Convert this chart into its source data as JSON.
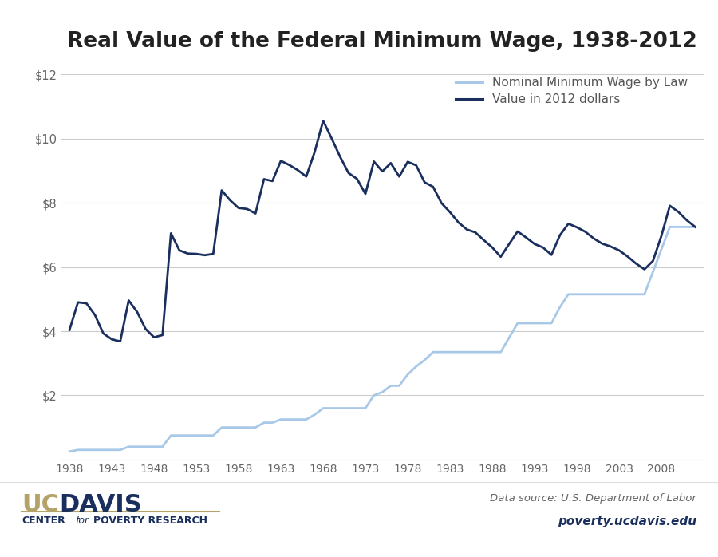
{
  "title": "Real Value of the Federal Minimum Wage, 1938-2012",
  "title_fontsize": 19,
  "background_color": "#ffffff",
  "nominal_color": "#a8c8e8",
  "real_color": "#1a2f5e",
  "nominal_label": "Nominal Minimum Wage by Law",
  "real_label": "Value in 2012 dollars",
  "source_text": "Data source: U.S. Department of Labor",
  "website_text": "poverty.ucdavis.edu",
  "ylabel_ticks": [
    "$2",
    "$4",
    "$6",
    "$8",
    "$10",
    "$12"
  ],
  "ytick_vals": [
    2,
    4,
    6,
    8,
    10,
    12
  ],
  "ylim": [
    0,
    12.5
  ],
  "xlim": [
    1937,
    2013
  ],
  "xticks": [
    1938,
    1943,
    1948,
    1953,
    1958,
    1963,
    1968,
    1973,
    1978,
    1983,
    1988,
    1993,
    1998,
    2003,
    2008
  ],
  "nominal_data": [
    [
      1938,
      0.25
    ],
    [
      1939,
      0.3
    ],
    [
      1940,
      0.3
    ],
    [
      1941,
      0.3
    ],
    [
      1942,
      0.3
    ],
    [
      1943,
      0.3
    ],
    [
      1944,
      0.3
    ],
    [
      1945,
      0.4
    ],
    [
      1946,
      0.4
    ],
    [
      1947,
      0.4
    ],
    [
      1948,
      0.4
    ],
    [
      1949,
      0.4
    ],
    [
      1950,
      0.75
    ],
    [
      1951,
      0.75
    ],
    [
      1952,
      0.75
    ],
    [
      1953,
      0.75
    ],
    [
      1954,
      0.75
    ],
    [
      1955,
      0.75
    ],
    [
      1956,
      1.0
    ],
    [
      1957,
      1.0
    ],
    [
      1958,
      1.0
    ],
    [
      1959,
      1.0
    ],
    [
      1960,
      1.0
    ],
    [
      1961,
      1.15
    ],
    [
      1962,
      1.15
    ],
    [
      1963,
      1.25
    ],
    [
      1964,
      1.25
    ],
    [
      1965,
      1.25
    ],
    [
      1966,
      1.25
    ],
    [
      1967,
      1.4
    ],
    [
      1968,
      1.6
    ],
    [
      1969,
      1.6
    ],
    [
      1970,
      1.6
    ],
    [
      1971,
      1.6
    ],
    [
      1972,
      1.6
    ],
    [
      1973,
      1.6
    ],
    [
      1974,
      2.0
    ],
    [
      1975,
      2.1
    ],
    [
      1976,
      2.3
    ],
    [
      1977,
      2.3
    ],
    [
      1978,
      2.65
    ],
    [
      1979,
      2.9
    ],
    [
      1980,
      3.1
    ],
    [
      1981,
      3.35
    ],
    [
      1982,
      3.35
    ],
    [
      1983,
      3.35
    ],
    [
      1984,
      3.35
    ],
    [
      1985,
      3.35
    ],
    [
      1986,
      3.35
    ],
    [
      1987,
      3.35
    ],
    [
      1988,
      3.35
    ],
    [
      1989,
      3.35
    ],
    [
      1990,
      3.8
    ],
    [
      1991,
      4.25
    ],
    [
      1992,
      4.25
    ],
    [
      1993,
      4.25
    ],
    [
      1994,
      4.25
    ],
    [
      1995,
      4.25
    ],
    [
      1996,
      4.75
    ],
    [
      1997,
      5.15
    ],
    [
      1998,
      5.15
    ],
    [
      1999,
      5.15
    ],
    [
      2000,
      5.15
    ],
    [
      2001,
      5.15
    ],
    [
      2002,
      5.15
    ],
    [
      2003,
      5.15
    ],
    [
      2004,
      5.15
    ],
    [
      2005,
      5.15
    ],
    [
      2006,
      5.15
    ],
    [
      2007,
      5.85
    ],
    [
      2008,
      6.55
    ],
    [
      2009,
      7.25
    ],
    [
      2010,
      7.25
    ],
    [
      2011,
      7.25
    ],
    [
      2012,
      7.25
    ]
  ],
  "real_data": [
    [
      1938,
      4.04
    ],
    [
      1939,
      4.9
    ],
    [
      1940,
      4.87
    ],
    [
      1941,
      4.51
    ],
    [
      1942,
      3.93
    ],
    [
      1943,
      3.75
    ],
    [
      1944,
      3.68
    ],
    [
      1945,
      4.96
    ],
    [
      1946,
      4.6
    ],
    [
      1947,
      4.07
    ],
    [
      1948,
      3.81
    ],
    [
      1949,
      3.88
    ],
    [
      1950,
      7.05
    ],
    [
      1951,
      6.52
    ],
    [
      1952,
      6.42
    ],
    [
      1953,
      6.41
    ],
    [
      1954,
      6.37
    ],
    [
      1955,
      6.41
    ],
    [
      1956,
      8.39
    ],
    [
      1957,
      8.08
    ],
    [
      1958,
      7.84
    ],
    [
      1959,
      7.81
    ],
    [
      1960,
      7.67
    ],
    [
      1961,
      8.74
    ],
    [
      1962,
      8.68
    ],
    [
      1963,
      9.31
    ],
    [
      1964,
      9.18
    ],
    [
      1965,
      9.02
    ],
    [
      1966,
      8.82
    ],
    [
      1967,
      9.59
    ],
    [
      1968,
      10.56
    ],
    [
      1969,
      10.01
    ],
    [
      1970,
      9.44
    ],
    [
      1971,
      8.93
    ],
    [
      1972,
      8.75
    ],
    [
      1973,
      8.28
    ],
    [
      1974,
      9.29
    ],
    [
      1975,
      8.98
    ],
    [
      1976,
      9.24
    ],
    [
      1977,
      8.82
    ],
    [
      1978,
      9.28
    ],
    [
      1979,
      9.17
    ],
    [
      1980,
      8.64
    ],
    [
      1981,
      8.5
    ],
    [
      1982,
      7.99
    ],
    [
      1983,
      7.71
    ],
    [
      1984,
      7.39
    ],
    [
      1985,
      7.17
    ],
    [
      1986,
      7.08
    ],
    [
      1987,
      6.84
    ],
    [
      1988,
      6.61
    ],
    [
      1989,
      6.32
    ],
    [
      1990,
      6.72
    ],
    [
      1991,
      7.11
    ],
    [
      1992,
      6.92
    ],
    [
      1993,
      6.72
    ],
    [
      1994,
      6.61
    ],
    [
      1995,
      6.38
    ],
    [
      1996,
      6.99
    ],
    [
      1997,
      7.35
    ],
    [
      1998,
      7.24
    ],
    [
      1999,
      7.1
    ],
    [
      2000,
      6.89
    ],
    [
      2001,
      6.73
    ],
    [
      2002,
      6.64
    ],
    [
      2003,
      6.52
    ],
    [
      2004,
      6.33
    ],
    [
      2005,
      6.11
    ],
    [
      2006,
      5.93
    ],
    [
      2007,
      6.19
    ],
    [
      2008,
      6.97
    ],
    [
      2009,
      7.91
    ],
    [
      2010,
      7.72
    ],
    [
      2011,
      7.46
    ],
    [
      2012,
      7.25
    ]
  ],
  "line_width": 2.0,
  "grid_color": "#cccccc",
  "tick_color": "#666666",
  "uc_color": "#b3a369",
  "davis_color": "#1a2f5e",
  "footer_line_color": "#b3a369"
}
